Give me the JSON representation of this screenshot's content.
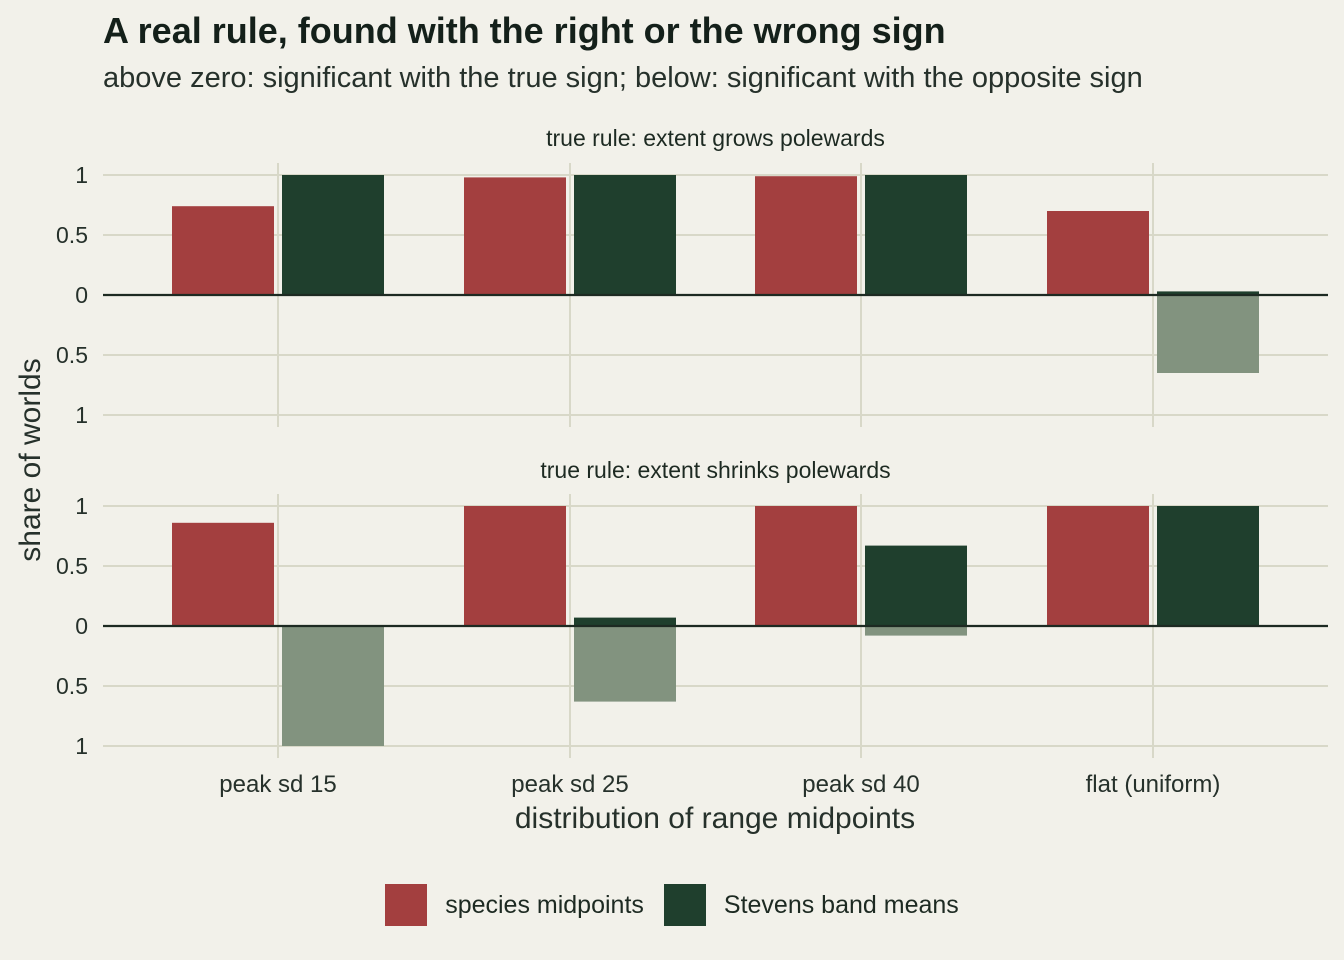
{
  "chart_data": {
    "type": "bar",
    "title": "A real rule, found with the right or the wrong sign",
    "subtitle": "above zero: significant with the true sign; below: significant with the opposite sign",
    "xlabel": "distribution of range midpoints",
    "ylabel": "share of worlds",
    "categories": [
      "peak sd 15",
      "peak sd 25",
      "peak sd 40",
      "flat (uniform)"
    ],
    "ylim": [
      -1,
      1
    ],
    "yticks": [
      {
        "value": 1,
        "label": "1"
      },
      {
        "value": 0.5,
        "label": "0.5"
      },
      {
        "value": 0,
        "label": "0"
      },
      {
        "value": -0.5,
        "label": "0.5"
      },
      {
        "value": -1,
        "label": "1"
      }
    ],
    "legend_position": "bottom",
    "grid": true,
    "colors": {
      "species midpoints": "#a33f3f",
      "Stevens band means": "#1f3f2d",
      "opposite_sign_fill": "#82937f",
      "grid": "#d8d8c8",
      "zero_line": "#1d2a22"
    },
    "series": [
      {
        "name": "species midpoints"
      },
      {
        "name": "Stevens band means"
      }
    ],
    "panels": [
      {
        "label": "true rule: extent grows polewards",
        "true_sign": {
          "species midpoints": [
            0.74,
            0.98,
            0.99,
            0.7
          ],
          "Stevens band means": [
            1.0,
            1.0,
            1.0,
            0.03
          ]
        },
        "opposite_sign": {
          "species midpoints": [
            0,
            0,
            0,
            0
          ],
          "Stevens band means": [
            0,
            0,
            0,
            0.65
          ]
        }
      },
      {
        "label": "true rule: extent shrinks polewards",
        "true_sign": {
          "species midpoints": [
            0.86,
            1.0,
            1.0,
            1.0
          ],
          "Stevens band means": [
            0,
            0.07,
            0.67,
            1.0
          ]
        },
        "opposite_sign": {
          "species midpoints": [
            0,
            0,
            0,
            0
          ],
          "Stevens band means": [
            1.0,
            0.63,
            0.08,
            0
          ]
        }
      }
    ]
  }
}
